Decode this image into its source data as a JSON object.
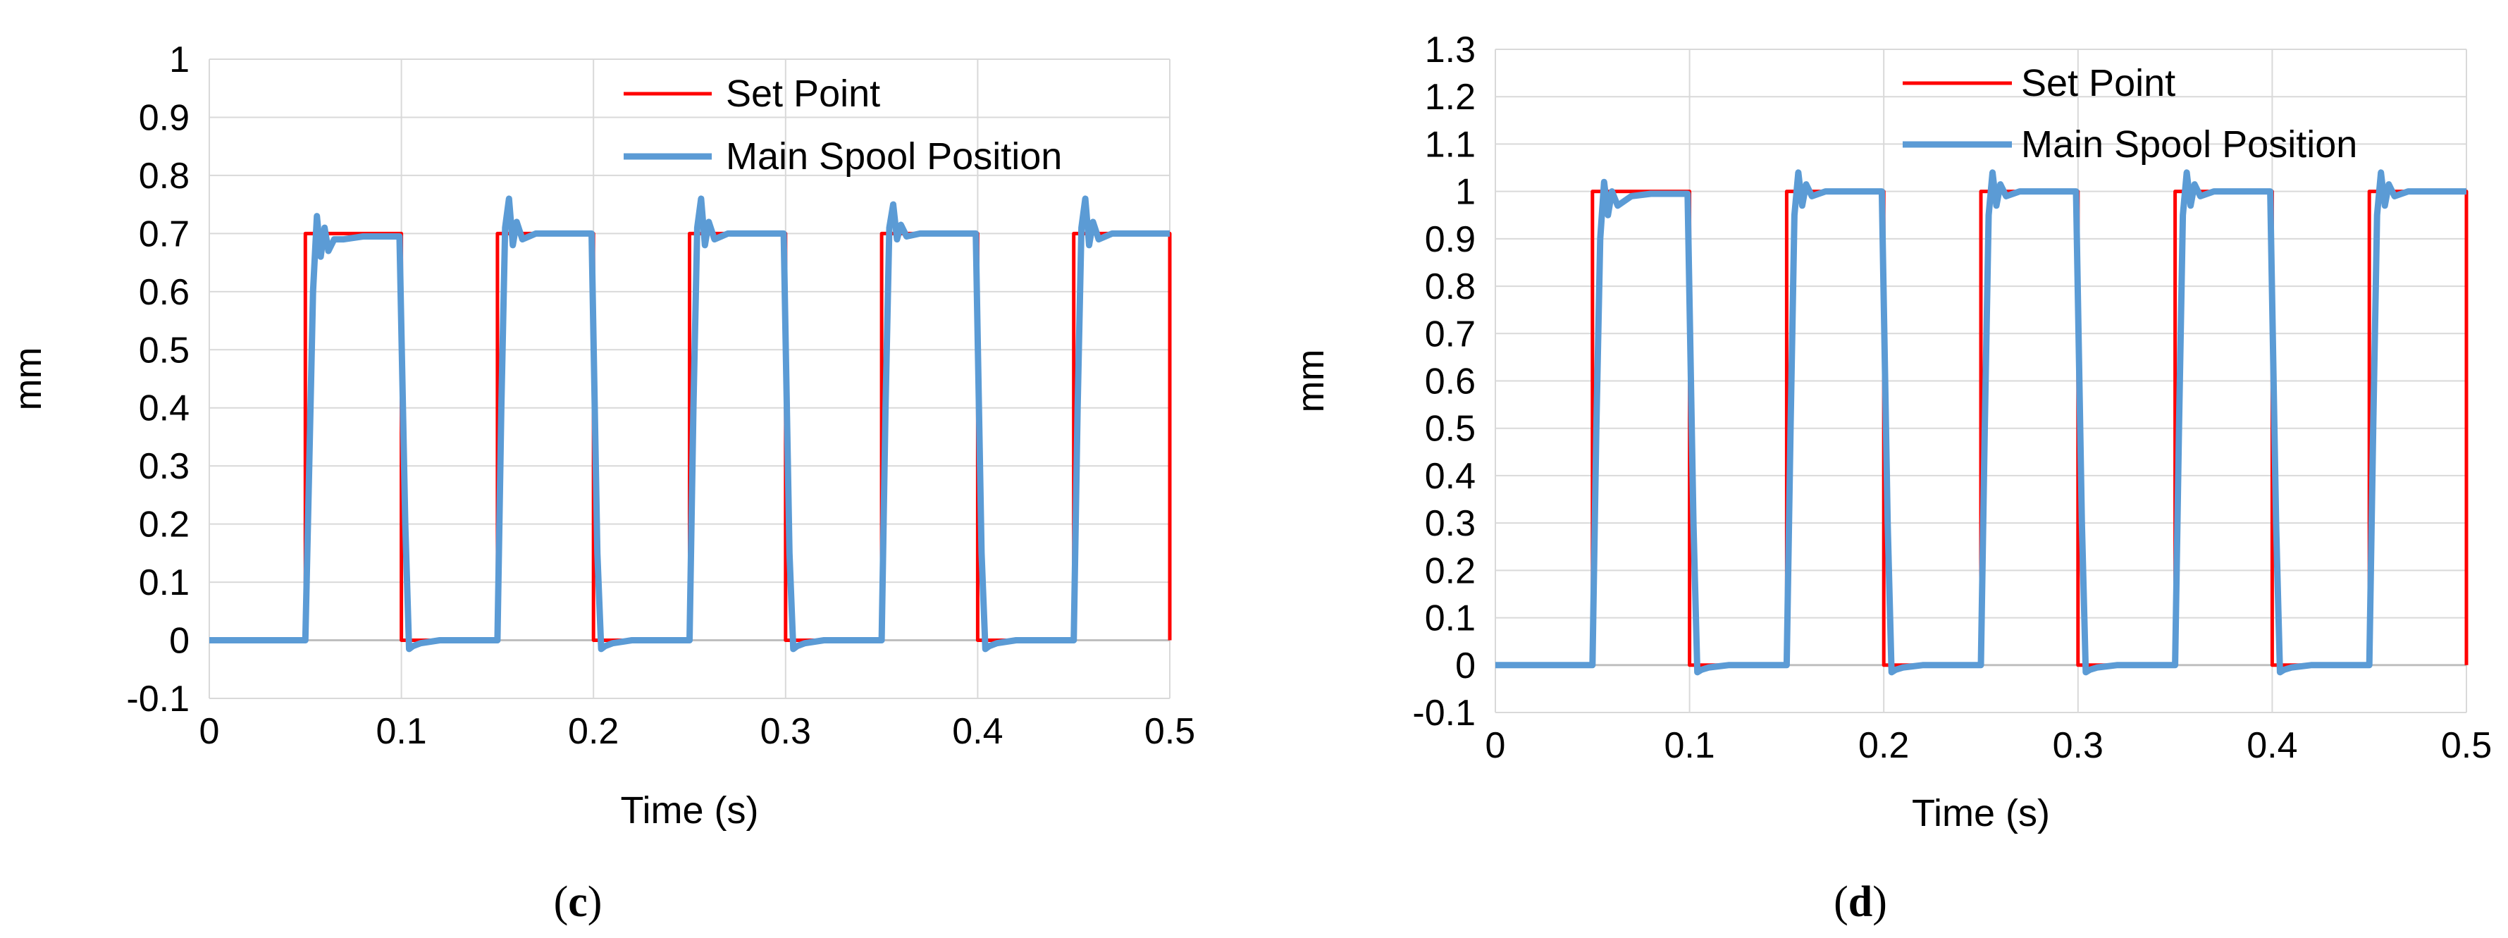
{
  "chart_data": [
    {
      "type": "line",
      "panel_label": {
        "open": "(",
        "letter": "c",
        "close": ")"
      },
      "xlabel": "Time (s)",
      "ylabel": "mm",
      "xlim": [
        0,
        0.5
      ],
      "ylim": [
        -0.1,
        1
      ],
      "xticks": [
        "0",
        "0.1",
        "0.2",
        "0.3",
        "0.4",
        "0.5"
      ],
      "yticks": [
        "-0.1",
        "0",
        "0.1",
        "0.2",
        "0.3",
        "0.4",
        "0.5",
        "0.6",
        "0.7",
        "0.8",
        "0.9",
        "1"
      ],
      "grid": true,
      "legend_position": "top-right",
      "amplitude": 0.7,
      "series": [
        {
          "name": "Set Point",
          "color": "#ff0000",
          "x": [
            0,
            0.05,
            0.05,
            0.1,
            0.1,
            0.15,
            0.15,
            0.2,
            0.2,
            0.25,
            0.25,
            0.3,
            0.3,
            0.35,
            0.35,
            0.4,
            0.4,
            0.45,
            0.45,
            0.5,
            0.5
          ],
          "y": [
            0,
            0,
            0.7,
            0.7,
            0,
            0,
            0.7,
            0.7,
            0,
            0,
            0.7,
            0.7,
            0,
            0,
            0.7,
            0.7,
            0,
            0,
            0.7,
            0.7,
            0
          ]
        },
        {
          "name": "Main Spool Position",
          "color": "#5b9bd5",
          "x": [
            0,
            0.05,
            0.052,
            0.054,
            0.056,
            0.058,
            0.06,
            0.062,
            0.065,
            0.07,
            0.08,
            0.099,
            0.102,
            0.104,
            0.106,
            0.11,
            0.12,
            0.15,
            0.152,
            0.154,
            0.156,
            0.158,
            0.16,
            0.163,
            0.17,
            0.18,
            0.199,
            0.202,
            0.204,
            0.206,
            0.21,
            0.22,
            0.25,
            0.252,
            0.254,
            0.256,
            0.258,
            0.26,
            0.263,
            0.27,
            0.28,
            0.299,
            0.302,
            0.304,
            0.306,
            0.31,
            0.32,
            0.35,
            0.352,
            0.354,
            0.356,
            0.358,
            0.36,
            0.363,
            0.37,
            0.38,
            0.399,
            0.402,
            0.404,
            0.406,
            0.41,
            0.42,
            0.45,
            0.452,
            0.454,
            0.456,
            0.458,
            0.46,
            0.463,
            0.47,
            0.48,
            0.5
          ],
          "y": [
            0,
            0,
            0.3,
            0.6,
            0.73,
            0.66,
            0.71,
            0.67,
            0.69,
            0.69,
            0.695,
            0.695,
            0.2,
            -0.015,
            -0.01,
            -0.005,
            0,
            0,
            0.4,
            0.71,
            0.76,
            0.68,
            0.72,
            0.69,
            0.7,
            0.7,
            0.7,
            0.15,
            -0.015,
            -0.01,
            -0.005,
            0,
            0,
            0.4,
            0.71,
            0.76,
            0.68,
            0.72,
            0.69,
            0.7,
            0.7,
            0.7,
            0.15,
            -0.015,
            -0.01,
            -0.005,
            0,
            0,
            0.4,
            0.71,
            0.75,
            0.69,
            0.715,
            0.695,
            0.7,
            0.7,
            0.7,
            0.15,
            -0.015,
            -0.01,
            -0.005,
            0,
            0,
            0.4,
            0.71,
            0.76,
            0.68,
            0.72,
            0.69,
            0.7,
            0.7,
            0.7
          ]
        }
      ]
    },
    {
      "type": "line",
      "panel_label": {
        "open": "(",
        "letter": "d",
        "close": ")"
      },
      "xlabel": "Time (s)",
      "ylabel": "mm",
      "xlim": [
        0,
        0.5
      ],
      "ylim": [
        -0.1,
        1.3
      ],
      "xticks": [
        "0",
        "0.1",
        "0.2",
        "0.3",
        "0.4",
        "0.5"
      ],
      "yticks": [
        "-0.1",
        "0",
        "0.1",
        "0.2",
        "0.3",
        "0.4",
        "0.5",
        "0.6",
        "0.7",
        "0.8",
        "0.9",
        "1",
        "1.1",
        "1.2",
        "1.3"
      ],
      "grid": true,
      "legend_position": "top-right",
      "amplitude": 1.0,
      "series": [
        {
          "name": "Set Point",
          "color": "#ff0000",
          "x": [
            0,
            0.05,
            0.05,
            0.1,
            0.1,
            0.15,
            0.15,
            0.2,
            0.2,
            0.25,
            0.25,
            0.3,
            0.3,
            0.35,
            0.35,
            0.4,
            0.4,
            0.45,
            0.45,
            0.5,
            0.5
          ],
          "y": [
            0,
            0,
            1,
            1,
            0,
            0,
            1,
            1,
            0,
            0,
            1,
            1,
            0,
            0,
            1,
            1,
            0,
            0,
            1,
            1,
            0
          ]
        },
        {
          "name": "Main Spool Position",
          "color": "#5b9bd5",
          "x": [
            0,
            0.05,
            0.052,
            0.054,
            0.056,
            0.058,
            0.06,
            0.063,
            0.07,
            0.08,
            0.099,
            0.102,
            0.104,
            0.106,
            0.11,
            0.12,
            0.15,
            0.152,
            0.154,
            0.156,
            0.158,
            0.16,
            0.163,
            0.17,
            0.18,
            0.199,
            0.202,
            0.204,
            0.206,
            0.21,
            0.22,
            0.25,
            0.252,
            0.254,
            0.256,
            0.258,
            0.26,
            0.263,
            0.27,
            0.28,
            0.299,
            0.302,
            0.304,
            0.306,
            0.31,
            0.32,
            0.35,
            0.352,
            0.354,
            0.356,
            0.358,
            0.36,
            0.363,
            0.37,
            0.38,
            0.399,
            0.402,
            0.404,
            0.406,
            0.41,
            0.42,
            0.45,
            0.452,
            0.454,
            0.456,
            0.458,
            0.46,
            0.463,
            0.47,
            0.48,
            0.5
          ],
          "y": [
            0,
            0,
            0.5,
            0.9,
            1.02,
            0.95,
            1.0,
            0.97,
            0.99,
            0.995,
            0.995,
            0.3,
            -0.015,
            -0.01,
            -0.005,
            0,
            0,
            0.5,
            0.95,
            1.04,
            0.97,
            1.015,
            0.99,
            1.0,
            1.0,
            1.0,
            0.3,
            -0.015,
            -0.01,
            -0.005,
            0,
            0,
            0.5,
            0.95,
            1.04,
            0.97,
            1.015,
            0.99,
            1.0,
            1.0,
            1.0,
            0.3,
            -0.015,
            -0.01,
            -0.005,
            0,
            0,
            0.5,
            0.95,
            1.04,
            0.97,
            1.015,
            0.99,
            1.0,
            1.0,
            1.0,
            0.3,
            -0.015,
            -0.01,
            -0.005,
            0,
            0,
            0.5,
            0.95,
            1.04,
            0.97,
            1.015,
            0.99,
            1.0,
            1.0,
            1.0
          ]
        }
      ]
    }
  ]
}
